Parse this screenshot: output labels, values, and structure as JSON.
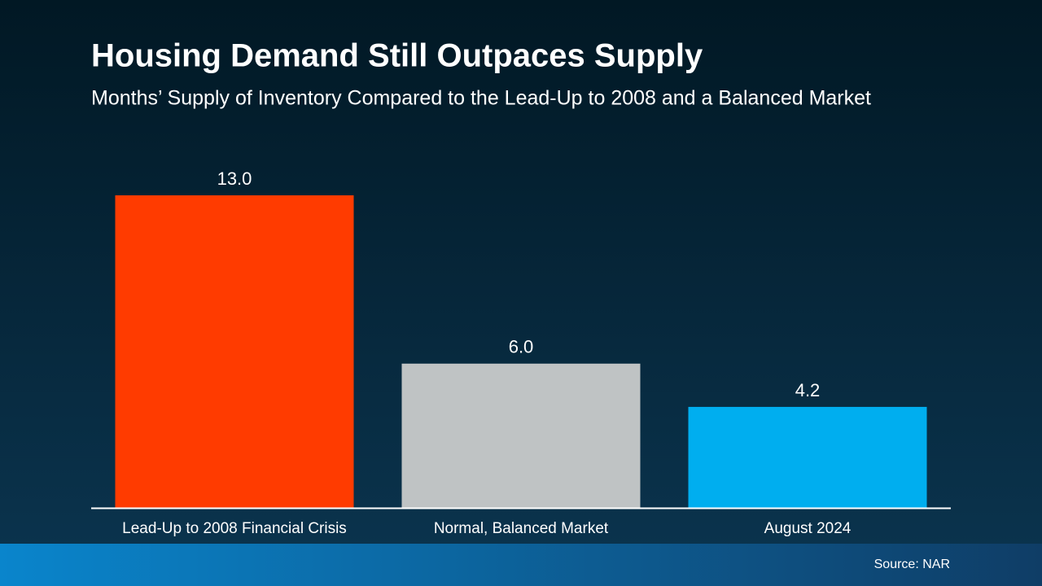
{
  "chart_data": {
    "type": "bar",
    "title": "Housing Demand Still Outpaces Supply",
    "subtitle": "Months’ Supply of Inventory Compared to the Lead-Up to 2008 and a Balanced Market",
    "categories": [
      "Lead-Up to 2008 Financial Crisis",
      "Normal, Balanced Market",
      "August 2024"
    ],
    "values": [
      13.0,
      6.0,
      4.2
    ],
    "value_labels": [
      "13.0",
      "6.0",
      "4.2"
    ],
    "colors": [
      "#ff3b00",
      "#bfc3c4",
      "#00aeef"
    ],
    "source": "Source: NAR"
  }
}
